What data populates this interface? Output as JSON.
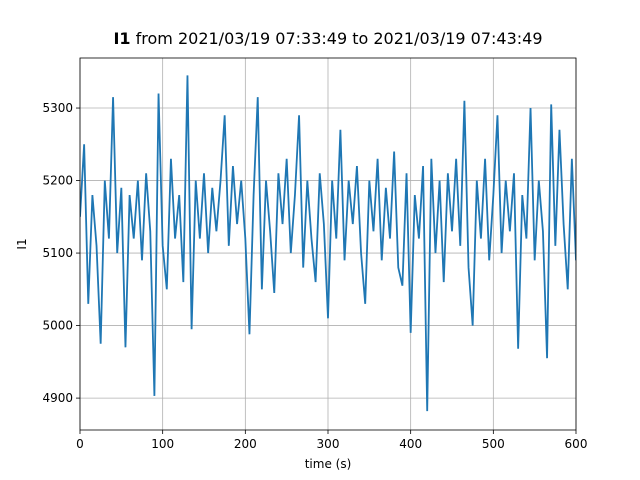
{
  "chart_data": {
    "type": "line",
    "title": {
      "bold": "I1",
      "rest": "from 2021/03/19 07:33:49 to 2021/03/19 07:43:49"
    },
    "xlabel": "time (s)",
    "ylabel": "I1",
    "xlim": [
      0,
      600
    ],
    "xticks": [
      0,
      100,
      200,
      300,
      400,
      500,
      600
    ],
    "ylim": [
      4856,
      5369
    ],
    "yticks": [
      4900,
      5000,
      5100,
      5200,
      5300
    ],
    "grid": true,
    "x": [
      0,
      5,
      10,
      15,
      20,
      25,
      30,
      35,
      40,
      45,
      50,
      55,
      60,
      65,
      70,
      75,
      80,
      85,
      90,
      95,
      100,
      105,
      110,
      115,
      120,
      125,
      130,
      135,
      140,
      145,
      150,
      155,
      160,
      165,
      170,
      175,
      180,
      185,
      190,
      195,
      200,
      205,
      210,
      215,
      220,
      225,
      230,
      235,
      240,
      245,
      250,
      255,
      260,
      265,
      270,
      275,
      280,
      285,
      290,
      295,
      300,
      305,
      310,
      315,
      320,
      325,
      330,
      335,
      340,
      345,
      350,
      355,
      360,
      365,
      370,
      375,
      380,
      385,
      390,
      395,
      400,
      405,
      410,
      415,
      420,
      425,
      430,
      435,
      440,
      445,
      450,
      455,
      460,
      465,
      470,
      475,
      480,
      485,
      490,
      495,
      500,
      505,
      510,
      515,
      520,
      525,
      530,
      535,
      540,
      545,
      550,
      555,
      560,
      565,
      570,
      575,
      580,
      585,
      590,
      595,
      600
    ],
    "series": [
      {
        "name": "I1",
        "color": "#1f77b4",
        "values": [
          5150,
          5250,
          5030,
          5180,
          5110,
          4975,
          5200,
          5120,
          5315,
          5100,
          5190,
          4970,
          5180,
          5120,
          5200,
          5090,
          5210,
          5130,
          4903,
          5320,
          5110,
          5050,
          5230,
          5120,
          5180,
          5060,
          5345,
          4995,
          5200,
          5120,
          5210,
          5100,
          5190,
          5130,
          5200,
          5290,
          5110,
          5220,
          5140,
          5200,
          5120,
          4988,
          5180,
          5315,
          5050,
          5200,
          5130,
          5045,
          5210,
          5140,
          5230,
          5100,
          5180,
          5290,
          5080,
          5200,
          5120,
          5060,
          5210,
          5140,
          5010,
          5200,
          5120,
          5270,
          5090,
          5200,
          5140,
          5220,
          5100,
          5030,
          5200,
          5130,
          5230,
          5090,
          5190,
          5120,
          5240,
          5080,
          5055,
          5210,
          4990,
          5180,
          5120,
          5220,
          4882,
          5230,
          5100,
          5200,
          5060,
          5210,
          5130,
          5230,
          5110,
          5310,
          5080,
          5000,
          5200,
          5120,
          5230,
          5090,
          5180,
          5290,
          5100,
          5200,
          5130,
          5210,
          4968,
          5180,
          5120,
          5300,
          5090,
          5200,
          5130,
          4955,
          5305,
          5110,
          5270,
          5140,
          5050,
          5230,
          5090
        ]
      }
    ]
  }
}
